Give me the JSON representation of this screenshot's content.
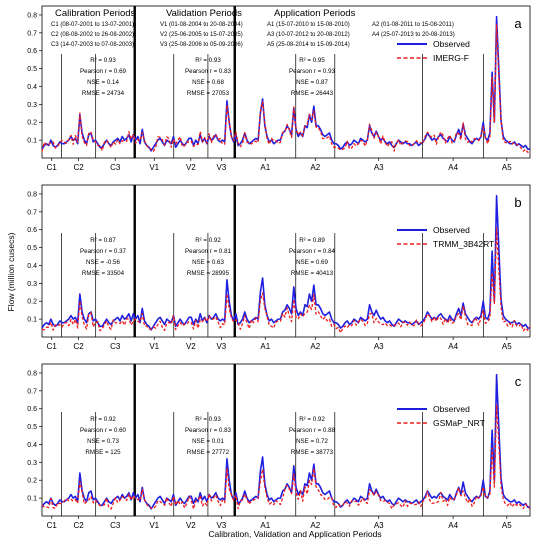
{
  "chart_data": {
    "type": "line",
    "xlabel": "Calibration, Validation and Application Periods",
    "ylabel": "Flow (million cusecs)",
    "ylim": [
      0,
      0.85
    ],
    "yticks": [
      0.1,
      0.2,
      0.3,
      0.4,
      0.5,
      0.6,
      0.7,
      0.8
    ],
    "periods": {
      "headings": [
        "Calibration Periods",
        "Validation Periods",
        "Application Periods"
      ],
      "calibration": [
        "C1 (08-07-2001 to 13-07-2001)",
        "C2 (08-08-2002 to 26-08-2002)",
        "C3 (14-07-2003 to 07-08-2003)"
      ],
      "validation": [
        "V1 (01-08-2004 to 20-08-2004)",
        "V2 (25-06-2005 to 15-07-2005)",
        "V3 (25-08-2006 to 05-09-2006)"
      ],
      "application": [
        "A1 (15-07-2010 to 15-08-2010)",
        "A2 (01-08-2011 to 15-08-2011)",
        "A3 (10-07-2012 to 20-08-2012)",
        "A4 (25-07-2013 to 20-08-2013)",
        "A5 (25-08-2014 to 15-09-2014)"
      ]
    },
    "segments": [
      "C1",
      "C2",
      "C3",
      "V1",
      "V2",
      "V3",
      "A1",
      "A2",
      "A3",
      "A4",
      "A5"
    ],
    "segment_bounds": [
      0,
      0.04,
      0.11,
      0.19,
      0.27,
      0.34,
      0.395,
      0.52,
      0.6,
      0.78,
      0.905,
      1.0
    ],
    "observed": [
      0.05,
      0.07,
      0.08,
      0.07,
      0.1,
      0.07,
      0.06,
      0.07,
      0.09,
      0.08,
      0.08,
      0.09,
      0.1,
      0.12,
      0.1,
      0.11,
      0.08,
      0.24,
      0.14,
      0.1,
      0.08,
      0.13,
      0.14,
      0.09,
      0.1,
      0.08,
      0.06,
      0.06,
      0.08,
      0.1,
      0.08,
      0.07,
      0.09,
      0.1,
      0.11,
      0.09,
      0.12,
      0.1,
      0.11,
      0.13,
      0.09,
      0.13,
      0.1,
      0.12,
      0.08,
      0.16,
      0.09,
      0.07,
      0.06,
      0.04,
      0.06,
      0.08,
      0.1,
      0.11,
      0.09,
      0.07,
      0.1,
      0.09,
      0.08,
      0.12,
      0.06,
      0.08,
      0.1,
      0.08,
      0.07,
      0.09,
      0.11,
      0.11,
      0.07,
      0.1,
      0.08,
      0.13,
      0.09,
      0.11,
      0.08,
      0.12,
      0.1,
      0.11,
      0.13,
      0.1,
      0.09,
      0.1,
      0.09,
      0.32,
      0.2,
      0.12,
      0.09,
      0.13,
      0.07,
      0.08,
      0.1,
      0.14,
      0.1,
      0.08,
      0.09,
      0.1,
      0.11,
      0.1,
      0.25,
      0.33,
      0.18,
      0.12,
      0.09,
      0.1,
      0.08,
      0.09,
      0.1,
      0.1,
      0.14,
      0.15,
      0.18,
      0.16,
      0.13,
      0.28,
      0.16,
      0.12,
      0.14,
      0.12,
      0.18,
      0.17,
      0.24,
      0.2,
      0.29,
      0.18,
      0.18,
      0.16,
      0.13,
      0.12,
      0.13,
      0.14,
      0.1,
      0.08,
      0.08,
      0.07,
      0.05,
      0.06,
      0.08,
      0.09,
      0.07,
      0.08,
      0.1,
      0.09,
      0.08,
      0.11,
      0.1,
      0.09,
      0.1,
      0.18,
      0.14,
      0.12,
      0.15,
      0.12,
      0.1,
      0.11,
      0.09,
      0.08,
      0.09,
      0.07,
      0.06,
      0.08,
      0.1,
      0.09,
      0.08,
      0.09,
      0.08,
      0.08,
      0.07,
      0.08,
      0.09,
      0.07,
      0.08,
      0.09,
      0.11,
      0.14,
      0.12,
      0.1,
      0.11,
      0.1,
      0.12,
      0.13,
      0.11,
      0.1,
      0.09,
      0.12,
      0.1,
      0.09,
      0.13,
      0.16,
      0.12,
      0.19,
      0.13,
      0.11,
      0.09,
      0.08,
      0.1,
      0.11,
      0.1,
      0.12,
      0.2,
      0.11,
      0.1,
      0.14,
      0.48,
      0.2,
      0.79,
      0.5,
      0.21,
      0.12,
      0.1,
      0.09,
      0.08,
      0.08,
      0.09,
      0.07,
      0.08,
      0.07,
      0.06,
      0.07,
      0.05,
      0.05
    ],
    "series": [
      {
        "name": "IMERG-F",
        "scale": 0.98,
        "seed": 3
      },
      {
        "name": "TRMM_3B42RT",
        "scale": 0.82,
        "seed": 7
      },
      {
        "name": "GSMaP_NRT",
        "scale": 0.85,
        "seed": 11
      }
    ],
    "panels": [
      {
        "letter": "a",
        "series_names": [
          "Observed",
          "IMERG-F"
        ],
        "stats": [
          [
            "R² = 0.93",
            "Pearson r = 0.69",
            "NSE = 0.14",
            "RMSE = 24734"
          ],
          [
            "R² = 0.93",
            "Pearson r = 0.83",
            "NSE = 0.68",
            "RMSE = 27053"
          ],
          [
            "R² = 0.95",
            "Pearson r = 0.93",
            "NSE = 0.87",
            "RMSE = 26443"
          ]
        ]
      },
      {
        "letter": "b",
        "series_names": [
          "Observed",
          "TRMM_3B42RT"
        ],
        "stats": [
          [
            "R² = 0.87",
            "Pearson r = 0.37",
            "NSE = -0.56",
            "RMSE = 33504"
          ],
          [
            "R² = 0.92",
            "Pearson r = 0.81",
            "NSE = 0.63",
            "RMSE = 28995"
          ],
          [
            "R² = 0.89",
            "Pearson r = 0.84",
            "NSE = 0.69",
            "RMSE = 40413"
          ]
        ]
      },
      {
        "letter": "c",
        "series_names": [
          "Observed",
          "GSMaP_NRT"
        ],
        "stats": [
          [
            "R² = 0.92",
            "Pearson r = 0.60",
            "NSE = 0.73",
            "RMSE = 125"
          ],
          [
            "R² = 0.93",
            "Pearson r = 0.83",
            "NSE = 0.01",
            "RMSE = 27772"
          ],
          [
            "R² = 0.92",
            "Pearson r = 0.88",
            "NSE = 0.72",
            "RMSE = 38773"
          ]
        ]
      }
    ],
    "colors": {
      "observed": "#1f1fe0",
      "estimate": "#ee1c1c"
    }
  }
}
